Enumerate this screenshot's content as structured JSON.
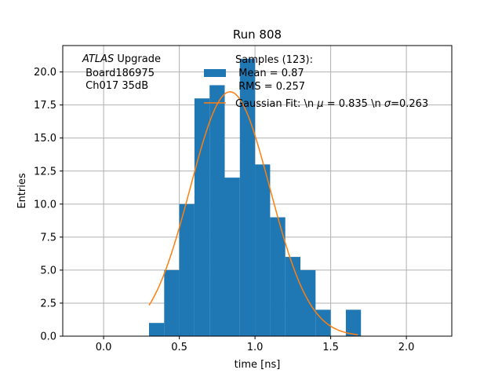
{
  "chart_data": {
    "type": "bar",
    "title": "Run 808",
    "xlabel": "time [ns]",
    "ylabel": "Entries",
    "xlim": [
      -0.27,
      2.3
    ],
    "ylim": [
      0,
      22
    ],
    "xticks": [
      0.0,
      0.5,
      1.0,
      1.5,
      2.0
    ],
    "xtick_labels": [
      "0.0",
      "0.5",
      "1.0",
      "1.5",
      "2.0"
    ],
    "yticks": [
      0.0,
      2.5,
      5.0,
      7.5,
      10.0,
      12.5,
      15.0,
      17.5,
      20.0
    ],
    "ytick_labels": [
      "0.0",
      "2.5",
      "5.0",
      "7.5",
      "10.0",
      "12.5",
      "15.0",
      "17.5",
      "20.0"
    ],
    "grid": true,
    "bin_width": 0.1,
    "bins": [
      {
        "left": 0.3,
        "count": 1
      },
      {
        "left": 0.4,
        "count": 5
      },
      {
        "left": 0.5,
        "count": 10
      },
      {
        "left": 0.6,
        "count": 18
      },
      {
        "left": 0.7,
        "count": 19
      },
      {
        "left": 0.8,
        "count": 12
      },
      {
        "left": 0.9,
        "count": 21
      },
      {
        "left": 1.0,
        "count": 13
      },
      {
        "left": 1.1,
        "count": 9
      },
      {
        "left": 1.2,
        "count": 6
      },
      {
        "left": 1.3,
        "count": 5
      },
      {
        "left": 1.4,
        "count": 2
      },
      {
        "left": 1.5,
        "count": 0
      },
      {
        "left": 1.6,
        "count": 2
      }
    ],
    "fit": {
      "mu": 0.835,
      "sigma": 0.263,
      "amplitude": 18.5,
      "x_range": [
        0.3,
        1.68
      ]
    },
    "annotation": {
      "line1_italic": "ATLAS",
      "line1_rest": " Upgrade",
      "line2": " Board186975",
      "line3": " Ch017 35dB"
    },
    "legend": {
      "placement": "top-right",
      "hist_lines": [
        "Samples (123):",
        " Mean = 0.87",
        " RMS = 0.257"
      ],
      "fit_label_prefix": "Gaussian Fit: \\n ",
      "fit_label_mu": "μ",
      "fit_label_mid": " = 0.835 \\n ",
      "fit_label_sigma": "σ",
      "fit_label_end": "=0.263"
    },
    "colors": {
      "bars": "#1f77b4",
      "fit": "#ff7f0e",
      "grid": "#b0b0b0"
    }
  }
}
